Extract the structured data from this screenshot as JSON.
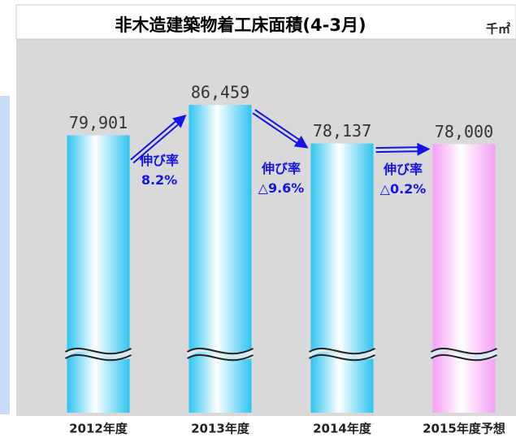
{
  "chart_data": {
    "type": "bar",
    "title": "非木造建築物着工床面積(4-3月)",
    "unit": "千㎡",
    "categories": [
      "2012年度",
      "2013年度",
      "2014年度",
      "2015年度予想"
    ],
    "values": [
      79901,
      86459,
      78137,
      78000
    ],
    "value_labels": [
      "79,901",
      "86,459",
      "78,137",
      "78,000"
    ],
    "colors": [
      "#2ec4f0",
      "#2ec4f0",
      "#2ec4f0",
      "#f59ef5"
    ],
    "ylim": [
      20000,
      100000
    ],
    "annotations": [
      {
        "label": "伸び率",
        "value": "8.2%"
      },
      {
        "label": "伸び率",
        "value": "△9.6%"
      },
      {
        "label": "伸び率",
        "value": "△0.2%"
      }
    ]
  }
}
